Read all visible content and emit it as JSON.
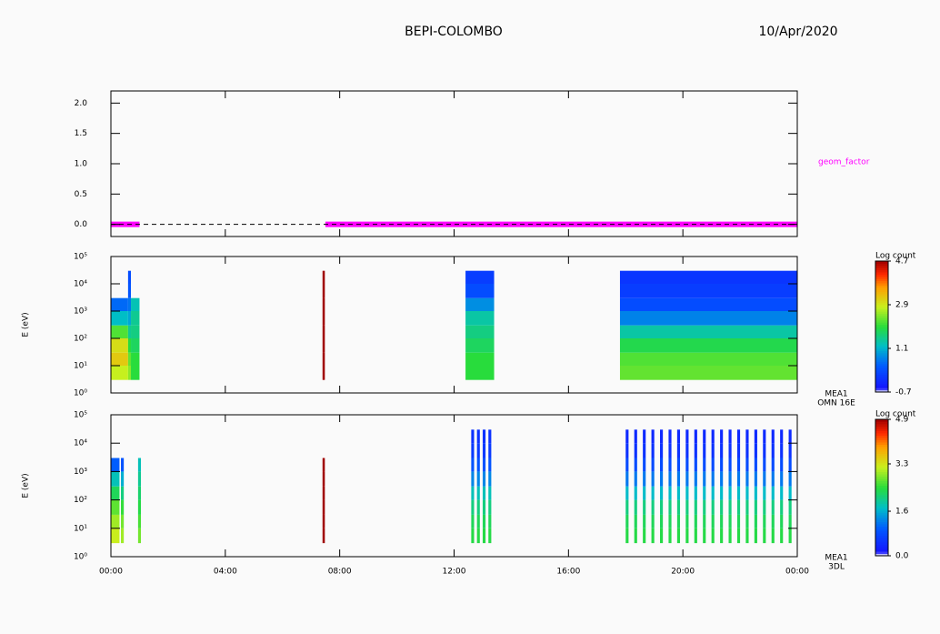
{
  "chart_data": [
    {
      "type": "line",
      "title": "BEPI-COLOMBO",
      "subtitle": "10/Apr/2020",
      "xlim": [
        0,
        24
      ],
      "ylim": [
        -0.2,
        2.2
      ],
      "yticks": [
        {
          "value": 0,
          "label": "0.0"
        },
        0.5,
        {
          "value": 1,
          "label": "1.0"
        },
        1.5,
        {
          "value": 2,
          "label": "2.0"
        }
      ],
      "series": [
        {
          "name": "geom_factor",
          "color": "#ff00ff",
          "x": [
            0,
            0.5,
            1,
            1.5,
            2,
            2.5,
            3,
            3.5,
            4,
            4.5,
            5,
            5.5,
            6,
            6.5,
            7,
            7.5,
            8,
            8.5,
            9,
            9.5,
            10,
            10.5,
            11,
            11.5,
            12,
            12.5,
            13,
            13.5,
            14,
            14.5,
            15,
            15.5,
            16,
            16.5,
            17,
            17.5,
            18,
            18.5,
            19,
            19.5,
            20,
            20.5,
            21,
            21.5,
            22,
            22.5,
            23,
            23.5,
            24
          ],
          "values": [
            0,
            0,
            0,
            null,
            null,
            null,
            null,
            null,
            null,
            null,
            null,
            null,
            null,
            null,
            null,
            0,
            0,
            0,
            0,
            0,
            0,
            0,
            0,
            0,
            0,
            0,
            0,
            0,
            0,
            0,
            0,
            0,
            0,
            0,
            0,
            0,
            0,
            0,
            0,
            0,
            0,
            0,
            0,
            0,
            0,
            0,
            0,
            0,
            0
          ]
        }
      ]
    },
    {
      "type": "heatmap",
      "ylabel": "E (eV)",
      "log": true,
      "xlim": [
        0,
        24
      ],
      "ylim": [
        1,
        100000
      ],
      "yticks": [
        {
          "value": 1,
          "label": "10⁰"
        },
        {
          "value": 10,
          "label": "10¹"
        },
        {
          "value": 100,
          "label": "10²"
        },
        {
          "value": 1000,
          "label": "10³"
        },
        {
          "value": 10000,
          "label": "10⁴"
        },
        {
          "value": 100000,
          "label": "10⁵"
        }
      ],
      "annotations": [
        "MEA1",
        "OMN 16E"
      ],
      "colorbar": {
        "label": "Log count",
        "zlim": [
          -0.7,
          4.7
        ],
        "zticks": [
          4.7,
          2.9,
          1.1,
          -0.7
        ]
      },
      "y_bins": [
        3,
        10,
        30,
        100,
        300,
        1000,
        3000,
        10000,
        30000
      ],
      "columns": [
        {
          "x": [
            0,
            0.6
          ],
          "z": [
            2.8,
            3.2,
            3.0,
            2.2,
            1.2,
            0.5,
            null,
            null
          ]
        },
        {
          "x": [
            0.6,
            0.7
          ],
          "z": [
            2.5,
            2.3,
            2.0,
            1.5,
            1.0,
            0.6,
            0.3,
            0.2
          ]
        },
        {
          "x": [
            0.7,
            1.0
          ],
          "z": [
            2.0,
            2.0,
            1.8,
            1.6,
            1.5,
            1.3,
            null,
            null
          ]
        },
        {
          "x": [
            7.4,
            7.48
          ],
          "z": [
            4.7,
            4.7,
            4.7,
            4.7,
            4.7,
            4.7,
            4.7,
            4.7
          ]
        },
        {
          "x": [
            12.4,
            13.4
          ],
          "z": [
            2.0,
            2.0,
            1.8,
            1.6,
            1.4,
            0.8,
            0.2,
            0.0
          ]
        },
        {
          "x": [
            17.8,
            24
          ],
          "z": [
            2.3,
            2.2,
            1.9,
            1.4,
            0.7,
            0.2,
            0.0,
            -0.1
          ]
        }
      ]
    },
    {
      "type": "heatmap",
      "ylabel": "E (eV)",
      "log": true,
      "xlim": [
        0,
        24
      ],
      "ylim": [
        1,
        100000
      ],
      "yticks": [
        {
          "value": 1,
          "label": "10⁰"
        },
        {
          "value": 10,
          "label": "10¹"
        },
        {
          "value": 100,
          "label": "10²"
        },
        {
          "value": 1000,
          "label": "10³"
        },
        {
          "value": 10000,
          "label": "10⁴"
        },
        {
          "value": 100000,
          "label": "10⁵"
        }
      ],
      "xticks": [
        {
          "value": 0,
          "label": "00:00"
        },
        {
          "value": 4,
          "label": "04:00"
        },
        {
          "value": 8,
          "label": "08:00"
        },
        {
          "value": 12,
          "label": "12:00"
        },
        {
          "value": 16,
          "label": "16:00"
        },
        {
          "value": 20,
          "label": "20:00"
        },
        {
          "value": 24,
          "label": "00:00"
        }
      ],
      "annotations": [
        "MEA1",
        "3DL"
      ],
      "colorbar": {
        "label": "Log count",
        "zlim": [
          0,
          4.9
        ],
        "zticks": [
          4.9,
          3.3,
          1.6,
          {
            "value": 0,
            "label": "0.0"
          }
        ]
      },
      "y_bins": [
        3,
        10,
        30,
        100,
        300,
        1000,
        3000,
        10000,
        30000
      ],
      "columns": [
        {
          "x": [
            0,
            0.3
          ],
          "z": [
            3.2,
            3.0,
            2.7,
            2.3,
            1.8,
            1.0,
            null,
            null
          ]
        },
        {
          "x": [
            0.35,
            0.45
          ],
          "z": [
            3.0,
            2.8,
            2.5,
            2.1,
            1.6,
            0.9,
            null,
            null
          ]
        },
        {
          "x": [
            0.95,
            1.05
          ],
          "z": [
            2.8,
            2.6,
            2.4,
            2.2,
            2.0,
            1.8,
            null,
            null
          ]
        },
        {
          "x": [
            7.4,
            7.48
          ],
          "z": [
            4.9,
            4.9,
            4.9,
            4.9,
            4.9,
            4.9,
            null,
            null
          ]
        },
        {
          "x": [
            12.6,
            12.7
          ],
          "z": [
            2.4,
            2.3,
            2.1,
            1.8,
            1.3,
            0.9,
            0.6,
            0.5
          ]
        },
        {
          "x": [
            12.8,
            12.9
          ],
          "z": [
            2.4,
            2.3,
            2.1,
            1.8,
            1.3,
            0.9,
            0.6,
            0.5
          ]
        },
        {
          "x": [
            13.0,
            13.1
          ],
          "z": [
            2.4,
            2.3,
            2.1,
            1.8,
            1.3,
            0.9,
            0.6,
            0.5
          ]
        },
        {
          "x": [
            13.2,
            13.3
          ],
          "z": [
            2.4,
            2.3,
            2.1,
            1.8,
            1.3,
            0.9,
            0.6,
            0.5
          ]
        },
        {
          "x": [
            18.0,
            18.1
          ],
          "z": [
            2.4,
            2.3,
            2.1,
            1.7,
            1.2,
            0.8,
            0.5,
            0.4
          ]
        },
        {
          "x": [
            18.3,
            18.4
          ],
          "z": [
            2.4,
            2.3,
            2.1,
            1.7,
            1.2,
            0.8,
            0.5,
            0.4
          ]
        },
        {
          "x": [
            18.6,
            18.7
          ],
          "z": [
            2.4,
            2.3,
            2.1,
            1.7,
            1.2,
            0.8,
            0.5,
            0.4
          ]
        },
        {
          "x": [
            18.9,
            19.0
          ],
          "z": [
            2.4,
            2.3,
            2.1,
            1.7,
            1.2,
            0.8,
            0.5,
            0.4
          ]
        },
        {
          "x": [
            19.2,
            19.3
          ],
          "z": [
            2.4,
            2.3,
            2.1,
            1.7,
            1.2,
            0.8,
            0.5,
            0.4
          ]
        },
        {
          "x": [
            19.5,
            19.6
          ],
          "z": [
            2.4,
            2.3,
            2.1,
            1.7,
            1.2,
            0.8,
            0.5,
            0.4
          ]
        },
        {
          "x": [
            19.8,
            19.9
          ],
          "z": [
            2.4,
            2.3,
            2.1,
            1.7,
            1.2,
            0.8,
            0.5,
            0.4
          ]
        },
        {
          "x": [
            20.1,
            20.2
          ],
          "z": [
            2.4,
            2.3,
            2.1,
            1.7,
            1.2,
            0.8,
            0.5,
            0.4
          ]
        },
        {
          "x": [
            20.4,
            20.5
          ],
          "z": [
            2.4,
            2.3,
            2.1,
            1.7,
            1.2,
            0.8,
            0.5,
            0.4
          ]
        },
        {
          "x": [
            20.7,
            20.8
          ],
          "z": [
            2.4,
            2.3,
            2.1,
            1.7,
            1.2,
            0.8,
            0.5,
            0.4
          ]
        },
        {
          "x": [
            21.0,
            21.1
          ],
          "z": [
            2.4,
            2.3,
            2.1,
            1.7,
            1.2,
            0.8,
            0.5,
            0.4
          ]
        },
        {
          "x": [
            21.3,
            21.4
          ],
          "z": [
            2.4,
            2.3,
            2.1,
            1.7,
            1.2,
            0.8,
            0.5,
            0.4
          ]
        },
        {
          "x": [
            21.6,
            21.7
          ],
          "z": [
            2.4,
            2.3,
            2.1,
            1.7,
            1.2,
            0.8,
            0.5,
            0.4
          ]
        },
        {
          "x": [
            21.9,
            22.0
          ],
          "z": [
            2.4,
            2.3,
            2.1,
            1.7,
            1.2,
            0.8,
            0.5,
            0.4
          ]
        },
        {
          "x": [
            22.2,
            22.3
          ],
          "z": [
            2.4,
            2.3,
            2.1,
            1.7,
            1.2,
            0.8,
            0.5,
            0.4
          ]
        },
        {
          "x": [
            22.5,
            22.6
          ],
          "z": [
            2.4,
            2.3,
            2.1,
            1.7,
            1.2,
            0.8,
            0.5,
            0.4
          ]
        },
        {
          "x": [
            22.8,
            22.9
          ],
          "z": [
            2.4,
            2.3,
            2.1,
            1.7,
            1.2,
            0.8,
            0.5,
            0.4
          ]
        },
        {
          "x": [
            23.1,
            23.2
          ],
          "z": [
            2.4,
            2.3,
            2.1,
            1.7,
            1.2,
            0.8,
            0.5,
            0.4
          ]
        },
        {
          "x": [
            23.4,
            23.5
          ],
          "z": [
            2.4,
            2.3,
            2.1,
            1.7,
            1.2,
            0.8,
            0.5,
            0.4
          ]
        },
        {
          "x": [
            23.7,
            23.8
          ],
          "z": [
            2.4,
            2.3,
            2.1,
            1.7,
            1.2,
            0.8,
            0.5,
            0.4
          ]
        }
      ]
    }
  ]
}
